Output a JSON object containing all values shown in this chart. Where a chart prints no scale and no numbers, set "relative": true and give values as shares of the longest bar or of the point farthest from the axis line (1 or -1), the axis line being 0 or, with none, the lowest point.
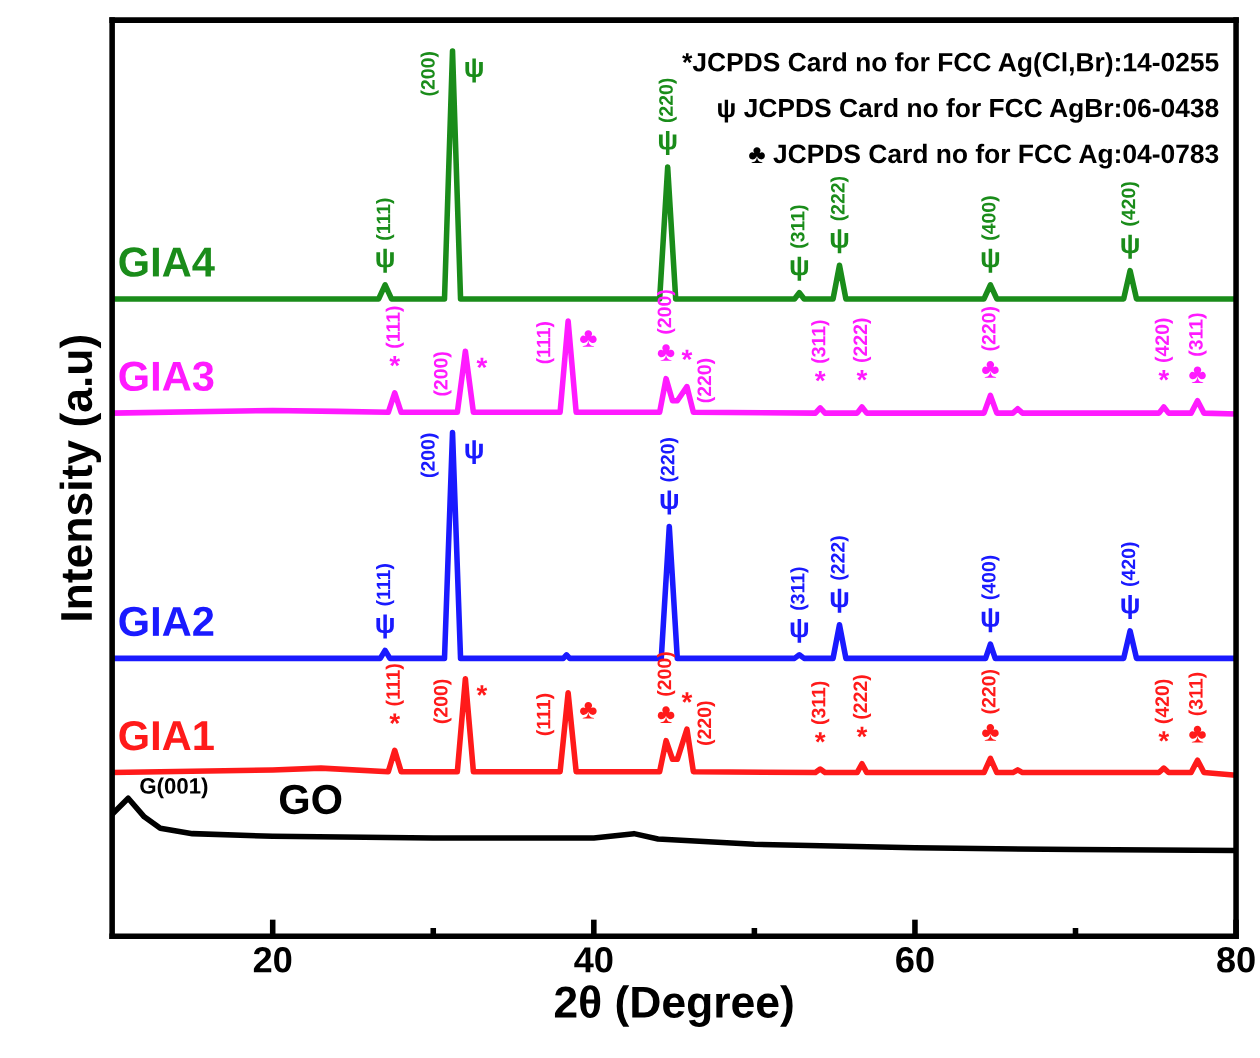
{
  "chart_data": {
    "type": "line",
    "relative": true,
    "xlabel": "2θ (Degree)",
    "ylabel": "Intensity (a.u)",
    "xlim": [
      10,
      80
    ],
    "xticks": [
      20,
      {
        "value": 30,
        "label": null
      },
      40,
      {
        "value": 50,
        "label": null
      },
      60,
      {
        "value": 70,
        "label": null
      },
      80
    ],
    "tick_labels": "x",
    "grid": false,
    "legend": false,
    "marker": "none",
    "line_style": "solid",
    "series": [
      {
        "name": "GIA4",
        "color": "#1a8c1a",
        "x": [
          10,
          26.6,
          27.0,
          27.4,
          30.7,
          31.2,
          31.7,
          44.1,
          44.6,
          45.1,
          52.5,
          52.8,
          53.1,
          54.9,
          55.3,
          55.7,
          64.3,
          64.7,
          65.1,
          73.0,
          73.4,
          73.8,
          80
        ],
        "values": [
          0.72,
          0.72,
          0.736,
          0.72,
          0.72,
          1.0,
          0.72,
          0.72,
          0.869,
          0.72,
          0.72,
          0.727,
          0.72,
          0.72,
          0.758,
          0.72,
          0.72,
          0.736,
          0.72,
          0.72,
          0.752,
          0.72,
          0.72
        ]
      },
      {
        "name": "GIA3",
        "color": "#ff1aff",
        "x": [
          10,
          20,
          24,
          27.2,
          27.6,
          28.0,
          31.5,
          32.0,
          32.5,
          37.9,
          38.4,
          38.9,
          44.1,
          44.5,
          44.9,
          45.2,
          45.8,
          46.2,
          53.8,
          54.1,
          54.4,
          56.4,
          56.7,
          57.0,
          64.3,
          64.7,
          65.1,
          66.1,
          66.4,
          66.7,
          75.2,
          75.5,
          75.8,
          77.2,
          77.6,
          78.0,
          80
        ],
        "values": [
          0.591,
          0.594,
          0.593,
          0.592,
          0.614,
          0.592,
          0.592,
          0.661,
          0.592,
          0.592,
          0.695,
          0.592,
          0.592,
          0.63,
          0.605,
          0.605,
          0.621,
          0.592,
          0.591,
          0.597,
          0.591,
          0.591,
          0.598,
          0.591,
          0.591,
          0.611,
          0.591,
          0.591,
          0.596,
          0.591,
          0.591,
          0.598,
          0.591,
          0.591,
          0.605,
          0.591,
          0.59
        ]
      },
      {
        "name": "GIA2",
        "color": "#1a1aff",
        "x": [
          10,
          26.7,
          27.0,
          27.3,
          30.7,
          31.2,
          31.7,
          38.1,
          38.3,
          38.5,
          44.2,
          44.7,
          45.2,
          52.5,
          52.8,
          53.1,
          54.9,
          55.3,
          55.7,
          64.4,
          64.7,
          65.0,
          73.0,
          73.4,
          73.8,
          80
        ],
        "values": [
          0.314,
          0.314,
          0.323,
          0.314,
          0.314,
          0.569,
          0.314,
          0.314,
          0.318,
          0.314,
          0.314,
          0.463,
          0.314,
          0.314,
          0.318,
          0.314,
          0.314,
          0.352,
          0.314,
          0.314,
          0.33,
          0.314,
          0.314,
          0.345,
          0.314,
          0.314
        ]
      },
      {
        "name": "GIA1",
        "color": "#ff1a1a",
        "x": [
          10,
          20,
          23,
          27.2,
          27.6,
          28.0,
          31.5,
          32.0,
          32.5,
          37.9,
          38.4,
          38.9,
          44.1,
          44.5,
          44.9,
          45.2,
          45.8,
          46.2,
          53.8,
          54.1,
          54.4,
          56.4,
          56.7,
          57.0,
          64.3,
          64.7,
          65.1,
          66.1,
          66.4,
          66.7,
          75.2,
          75.5,
          75.8,
          77.2,
          77.6,
          78.0,
          80
        ],
        "values": [
          0.185,
          0.188,
          0.19,
          0.186,
          0.21,
          0.186,
          0.186,
          0.291,
          0.186,
          0.186,
          0.275,
          0.186,
          0.186,
          0.221,
          0.2,
          0.2,
          0.234,
          0.186,
          0.185,
          0.189,
          0.185,
          0.185,
          0.195,
          0.185,
          0.185,
          0.201,
          0.185,
          0.185,
          0.188,
          0.185,
          0.185,
          0.19,
          0.185,
          0.185,
          0.199,
          0.185,
          0.182
        ]
      },
      {
        "name": "GO",
        "color": "#000000",
        "x": [
          10,
          11.0,
          12,
          13,
          15,
          20,
          30,
          40,
          42.5,
          44,
          50,
          60,
          70,
          80
        ],
        "values": [
          0.138,
          0.156,
          0.135,
          0.122,
          0.116,
          0.113,
          0.111,
          0.111,
          0.116,
          0.11,
          0.104,
          0.1,
          0.098,
          0.097
        ]
      }
    ],
    "annotations": [
      "*JCPDS Card no for FCC Ag(Cl,Br):14-0255",
      "ψ JCPDS Card no for FCC AgBr:06-0438",
      "♣ JCPDS Card no for FCC Ag:04-0783",
      {
        "text": "G(001)",
        "x": 11.0,
        "y": 0.156
      },
      {
        "text": "ψ",
        "x": 27.0,
        "y": 0.736
      },
      {
        "text": "(111)",
        "x": 27.0,
        "y": 0.736
      },
      {
        "text": "ψ",
        "x": 31.2,
        "y": 1.0
      },
      {
        "text": "(200)",
        "x": 31.2,
        "y": 1.0
      },
      {
        "text": "ψ",
        "x": 44.6,
        "y": 0.869
      },
      {
        "text": "(220)",
        "x": 44.6,
        "y": 0.869
      },
      {
        "text": "ψ",
        "x": 52.8,
        "y": 0.727
      },
      {
        "text": "(311)",
        "x": 52.8,
        "y": 0.727
      },
      {
        "text": "ψ",
        "x": 55.3,
        "y": 0.758
      },
      {
        "text": "(222)",
        "x": 55.3,
        "y": 0.758
      },
      {
        "text": "ψ",
        "x": 64.7,
        "y": 0.736
      },
      {
        "text": "(400)",
        "x": 64.7,
        "y": 0.736
      },
      {
        "text": "ψ",
        "x": 73.4,
        "y": 0.752
      },
      {
        "text": "(420)",
        "x": 73.4,
        "y": 0.752
      },
      {
        "text": "*",
        "x": 27.6,
        "y": 0.614
      },
      {
        "text": "(111)",
        "x": 27.6,
        "y": 0.614
      },
      {
        "text": "*",
        "x": 32.0,
        "y": 0.661
      },
      {
        "text": "(200)",
        "x": 32.0,
        "y": 0.661
      },
      {
        "text": "♣",
        "x": 38.4,
        "y": 0.695
      },
      {
        "text": "(111)",
        "x": 38.4,
        "y": 0.695
      },
      {
        "text": "♣",
        "x": 44.5,
        "y": 0.63
      },
      {
        "text": "(200)",
        "x": 44.5,
        "y": 0.63
      },
      {
        "text": "*",
        "x": 45.8,
        "y": 0.621
      },
      {
        "text": "(220)",
        "x": 45.8,
        "y": 0.621
      },
      {
        "text": "*",
        "x": 54.1,
        "y": 0.597
      },
      {
        "text": "(311)",
        "x": 54.1,
        "y": 0.597
      },
      {
        "text": "*",
        "x": 56.7,
        "y": 0.598
      },
      {
        "text": "(222)",
        "x": 56.7,
        "y": 0.598
      },
      {
        "text": "♣",
        "x": 64.7,
        "y": 0.611
      },
      {
        "text": "(220)",
        "x": 64.7,
        "y": 0.611
      },
      {
        "text": "*",
        "x": 75.5,
        "y": 0.598
      },
      {
        "text": "(420)",
        "x": 75.5,
        "y": 0.598
      },
      {
        "text": "♣",
        "x": 77.6,
        "y": 0.605
      },
      {
        "text": "(311)",
        "x": 77.6,
        "y": 0.605
      },
      {
        "text": "ψ",
        "x": 27.0,
        "y": 0.323
      },
      {
        "text": "(111)",
        "x": 27.0,
        "y": 0.323
      },
      {
        "text": "ψ",
        "x": 31.2,
        "y": 0.569
      },
      {
        "text": "(200)",
        "x": 31.2,
        "y": 0.569
      },
      {
        "text": "ψ",
        "x": 44.7,
        "y": 0.463
      },
      {
        "text": "(220)",
        "x": 44.7,
        "y": 0.463
      },
      {
        "text": "ψ",
        "x": 52.8,
        "y": 0.318
      },
      {
        "text": "(311)",
        "x": 52.8,
        "y": 0.318
      },
      {
        "text": "ψ",
        "x": 55.3,
        "y": 0.352
      },
      {
        "text": "(222)",
        "x": 55.3,
        "y": 0.352
      },
      {
        "text": "ψ",
        "x": 64.7,
        "y": 0.33
      },
      {
        "text": "(400)",
        "x": 64.7,
        "y": 0.33
      },
      {
        "text": "ψ",
        "x": 73.4,
        "y": 0.345
      },
      {
        "text": "(420)",
        "x": 73.4,
        "y": 0.345
      },
      {
        "text": "*",
        "x": 27.6,
        "y": 0.21
      },
      {
        "text": "(111)",
        "x": 27.6,
        "y": 0.21
      },
      {
        "text": "*",
        "x": 32.0,
        "y": 0.291
      },
      {
        "text": "(200)",
        "x": 32.0,
        "y": 0.291
      },
      {
        "text": "♣",
        "x": 38.4,
        "y": 0.275
      },
      {
        "text": "(111)",
        "x": 38.4,
        "y": 0.275
      },
      {
        "text": "♣",
        "x": 44.5,
        "y": 0.221
      },
      {
        "text": "(200)",
        "x": 44.5,
        "y": 0.221
      },
      {
        "text": "*",
        "x": 45.8,
        "y": 0.234
      },
      {
        "text": "(220)",
        "x": 45.8,
        "y": 0.234
      },
      {
        "text": "*",
        "x": 54.1,
        "y": 0.189
      },
      {
        "text": "(311)",
        "x": 54.1,
        "y": 0.189
      },
      {
        "text": "*",
        "x": 56.7,
        "y": 0.195
      },
      {
        "text": "(222)",
        "x": 56.7,
        "y": 0.195
      },
      {
        "text": "♣",
        "x": 64.7,
        "y": 0.201
      },
      {
        "text": "(220)",
        "x": 64.7,
        "y": 0.201
      },
      {
        "text": "*",
        "x": 75.5,
        "y": 0.19
      },
      {
        "text": "(420)",
        "x": 75.5,
        "y": 0.19
      },
      {
        "text": "♣",
        "x": 77.6,
        "y": 0.199
      },
      {
        "text": "(311)",
        "x": 77.6,
        "y": 0.199
      }
    ]
  }
}
